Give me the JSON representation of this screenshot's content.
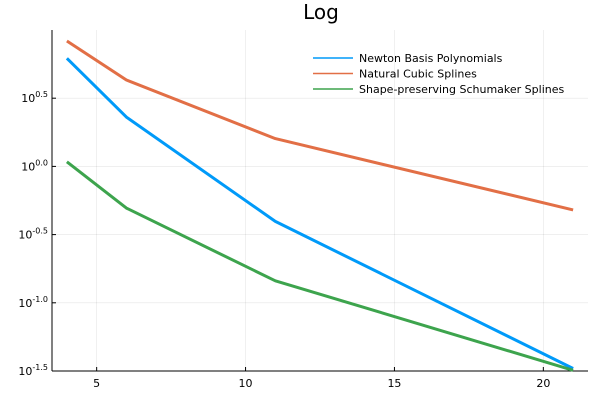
{
  "chart_data": {
    "type": "line",
    "title": "Log",
    "xlabel": "",
    "ylabel": "",
    "y_scale": "log10",
    "xlim": [
      3.5,
      21.5
    ],
    "ylim_exponent": [
      -1.5,
      1.0
    ],
    "x_ticks": [
      5,
      10,
      15,
      20
    ],
    "y_ticks": [
      {
        "base": "10",
        "exp": "-1.5",
        "value": -1.5
      },
      {
        "base": "10",
        "exp": "-1.0",
        "value": -1.0
      },
      {
        "base": "10",
        "exp": "-0.5",
        "value": -0.5
      },
      {
        "base": "10",
        "exp": "0.0",
        "value": 0.0
      },
      {
        "base": "10",
        "exp": "0.5",
        "value": 0.5
      }
    ],
    "grid": true,
    "legend_position": "top-right",
    "x": [
      4,
      6,
      11,
      21
    ],
    "series": [
      {
        "name": "Newton Basis Polynomials",
        "color": "#009af9",
        "values": [
          6.2,
          2.3,
          0.395,
          0.033
        ]
      },
      {
        "name": "Natural Cubic Splines",
        "color": "#e26f46",
        "values": [
          8.3,
          4.3,
          1.6,
          0.48
        ]
      },
      {
        "name": "Shape-preserving Schumaker Splines",
        "color": "#3da44d",
        "values": [
          1.08,
          0.495,
          0.145,
          0.032
        ]
      }
    ]
  }
}
